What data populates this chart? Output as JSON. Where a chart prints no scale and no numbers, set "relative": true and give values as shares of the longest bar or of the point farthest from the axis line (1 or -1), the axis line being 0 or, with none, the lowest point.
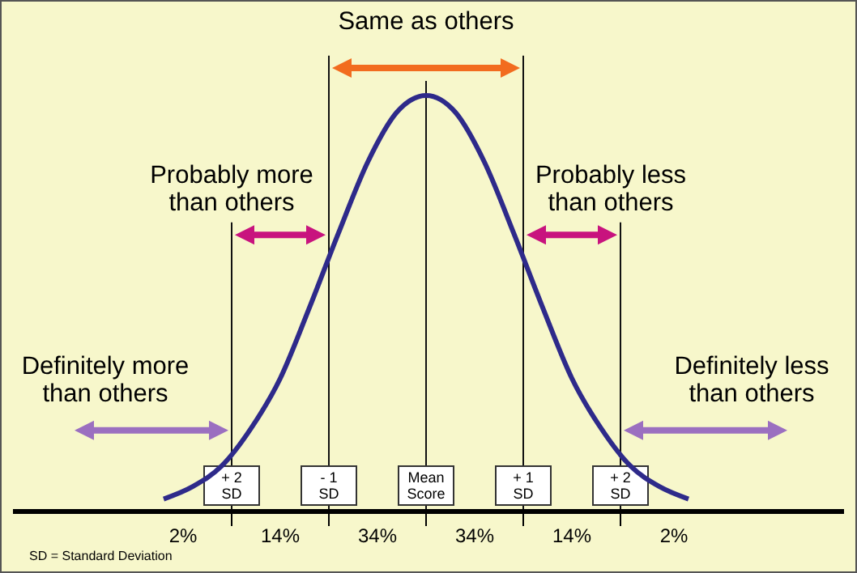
{
  "chart_data": {
    "type": "line",
    "relative": true,
    "x": [
      -2.7,
      -2.4,
      -2.1,
      -1.8,
      -1.5,
      -1.2,
      -0.9,
      -0.6,
      -0.3,
      0,
      0.3,
      0.6,
      0.9,
      1.2,
      1.5,
      1.8,
      2.1,
      2.4,
      2.7
    ],
    "series": [
      {
        "color": "#2e2a8a",
        "values": [
          0.03,
          0.06,
          0.11,
          0.2,
          0.32,
          0.49,
          0.67,
          0.84,
          0.96,
          1,
          0.96,
          0.84,
          0.67,
          0.49,
          0.32,
          0.2,
          0.11,
          0.06,
          0.03
        ]
      }
    ],
    "xlim": [
      -4.25,
      4.3
    ],
    "xticks": [
      {
        "value": -2,
        "label": "+ 2 SD"
      },
      {
        "value": -1,
        "label": "- 1 SD"
      },
      {
        "value": 0,
        "label": "Mean Score"
      },
      {
        "value": 1,
        "label": "+ 1 SD"
      },
      {
        "value": 2,
        "label": "+ 2 SD"
      }
    ],
    "ref_lines": [
      {
        "axis": "x",
        "value": -2
      },
      {
        "axis": "x",
        "value": -1
      },
      {
        "axis": "x",
        "value": 0
      },
      {
        "axis": "x",
        "value": 1
      },
      {
        "axis": "x",
        "value": 2
      }
    ],
    "annotations": [
      "Same as others",
      "Probably more than others",
      "Probably less than others",
      "Definitely more than others",
      "Definitely less than others",
      "2%",
      "14%",
      "34%",
      "34%",
      "14%",
      "2%",
      "SD = Standard Deviation"
    ],
    "line_style": "solid",
    "marker": "none"
  }
}
